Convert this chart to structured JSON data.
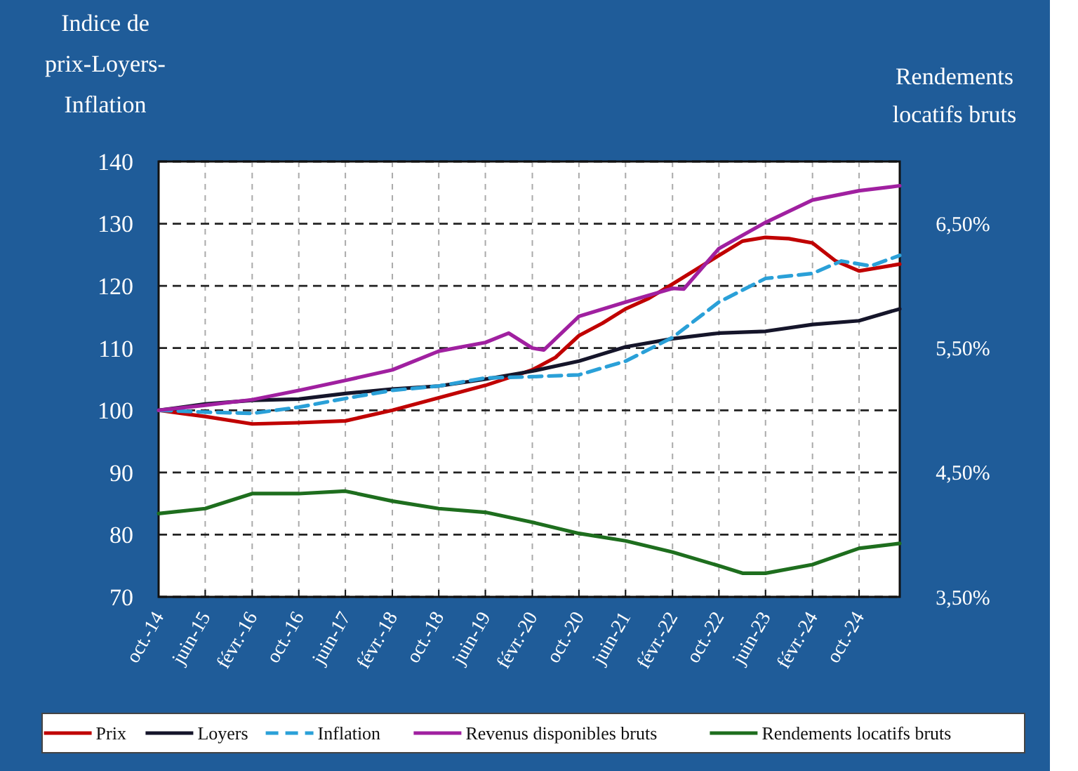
{
  "chart_data": {
    "type": "line",
    "ylabel": "Indice de prix-Loyers-Inflation",
    "y2label": "Rendements locatifs bruts",
    "xlim": [
      "2014-10",
      "2025-05"
    ],
    "xticks": [
      {
        "value": "2014-10",
        "label": "oct.-14"
      },
      {
        "value": "2015-06",
        "label": "juin-15"
      },
      {
        "value": "2016-02",
        "label": "févr.-16"
      },
      {
        "value": "2016-10",
        "label": "oct.-16"
      },
      {
        "value": "2017-06",
        "label": "juin-17"
      },
      {
        "value": "2018-02",
        "label": "févr.-18"
      },
      {
        "value": "2018-10",
        "label": "oct.-18"
      },
      {
        "value": "2019-06",
        "label": "juin-19"
      },
      {
        "value": "2020-02",
        "label": "févr.-20"
      },
      {
        "value": "2020-10",
        "label": "oct.-20"
      },
      {
        "value": "2021-06",
        "label": "juin-21"
      },
      {
        "value": "2022-02",
        "label": "févr.-22"
      },
      {
        "value": "2022-10",
        "label": "oct.-22"
      },
      {
        "value": "2023-06",
        "label": "juin-23"
      },
      {
        "value": "2024-02",
        "label": "févr.-24"
      },
      {
        "value": "2024-10",
        "label": "oct.-24"
      }
    ],
    "ylim": [
      70,
      140
    ],
    "yticks": [
      70,
      80,
      90,
      100,
      110,
      120,
      130,
      140
    ],
    "y2lim": [
      3.5,
      7.0
    ],
    "y2ticks": [
      {
        "value": 3.5,
        "label": "3,50%"
      },
      {
        "value": 4.5,
        "label": "4,50%"
      },
      {
        "value": 5.5,
        "label": "5,50%"
      },
      {
        "value": 6.5,
        "label": "6,50%"
      }
    ],
    "grid": true,
    "legend": "bottom",
    "marker": "none",
    "series": [
      {
        "name": "Prix",
        "color": "#c00000",
        "x": [
          "2014-10",
          "2015-06",
          "2016-02",
          "2016-10",
          "2017-06",
          "2018-02",
          "2018-10",
          "2019-06",
          "2020-02",
          "2020-06",
          "2020-10",
          "2021-02",
          "2021-06",
          "2021-10",
          "2022-02",
          "2022-10",
          "2023-02",
          "2023-06",
          "2023-10",
          "2024-02",
          "2024-06",
          "2024-10",
          "2025-05"
        ],
        "values": [
          100,
          99,
          97.8,
          98,
          98.3,
          100,
          102,
          104,
          106.5,
          108.5,
          112,
          114,
          116.3,
          118,
          120.3,
          124.9,
          127.2,
          127.8,
          127.6,
          126.9,
          124,
          122.4,
          123.5
        ]
      },
      {
        "name": "Loyers",
        "color": "#15152a",
        "x": [
          "2014-10",
          "2015-06",
          "2016-02",
          "2016-10",
          "2017-06",
          "2018-02",
          "2018-10",
          "2019-06",
          "2020-02",
          "2020-10",
          "2021-06",
          "2022-02",
          "2022-10",
          "2023-06",
          "2024-02",
          "2024-10",
          "2025-05"
        ],
        "values": [
          100,
          101,
          101.6,
          101.8,
          102.7,
          103.4,
          103.9,
          105,
          106.3,
          107.9,
          110.2,
          111.5,
          112.4,
          112.7,
          113.8,
          114.4,
          116.3
        ]
      },
      {
        "name": "Inflation",
        "color": "#2aa0d8",
        "line_style": "dashed",
        "x": [
          "2014-10",
          "2015-06",
          "2016-02",
          "2016-10",
          "2017-06",
          "2018-02",
          "2018-10",
          "2019-06",
          "2020-02",
          "2020-10",
          "2021-06",
          "2022-02",
          "2022-10",
          "2023-06",
          "2024-02",
          "2024-07",
          "2024-12",
          "2025-05"
        ],
        "values": [
          100,
          99.7,
          99.5,
          100.5,
          101.9,
          103.2,
          103.9,
          105.2,
          105.4,
          105.7,
          107.9,
          111.7,
          117.4,
          121.2,
          122,
          124,
          123.2,
          124.9
        ]
      },
      {
        "name": "Revenus disponibles bruts",
        "color": "#a020a0",
        "x": [
          "2014-10",
          "2015-06",
          "2016-02",
          "2016-10",
          "2017-06",
          "2018-02",
          "2018-10",
          "2019-06",
          "2019-10",
          "2020-02",
          "2020-04",
          "2020-10",
          "2021-06",
          "2022-02",
          "2022-04",
          "2022-10",
          "2023-06",
          "2024-02",
          "2024-10",
          "2025-05"
        ],
        "values": [
          100,
          100.8,
          101.7,
          103.2,
          104.8,
          106.5,
          109.5,
          110.9,
          112.4,
          110,
          109.7,
          115.1,
          117.4,
          119.6,
          119.5,
          126,
          130.2,
          133.8,
          135.3,
          136.1
        ]
      },
      {
        "name": "Rendements locatifs bruts",
        "color": "#1e6e1e",
        "axis": "y2",
        "x": [
          "2014-10",
          "2015-06",
          "2016-02",
          "2016-10",
          "2017-06",
          "2018-02",
          "2018-10",
          "2019-06",
          "2020-02",
          "2020-10",
          "2021-06",
          "2022-02",
          "2022-10",
          "2023-02",
          "2023-06",
          "2024-02",
          "2024-10",
          "2025-05"
        ],
        "values": [
          4.17,
          4.21,
          4.33,
          4.33,
          4.35,
          4.27,
          4.21,
          4.18,
          4.1,
          4.01,
          3.95,
          3.86,
          3.75,
          3.69,
          3.69,
          3.76,
          3.89,
          3.93
        ]
      }
    ]
  }
}
